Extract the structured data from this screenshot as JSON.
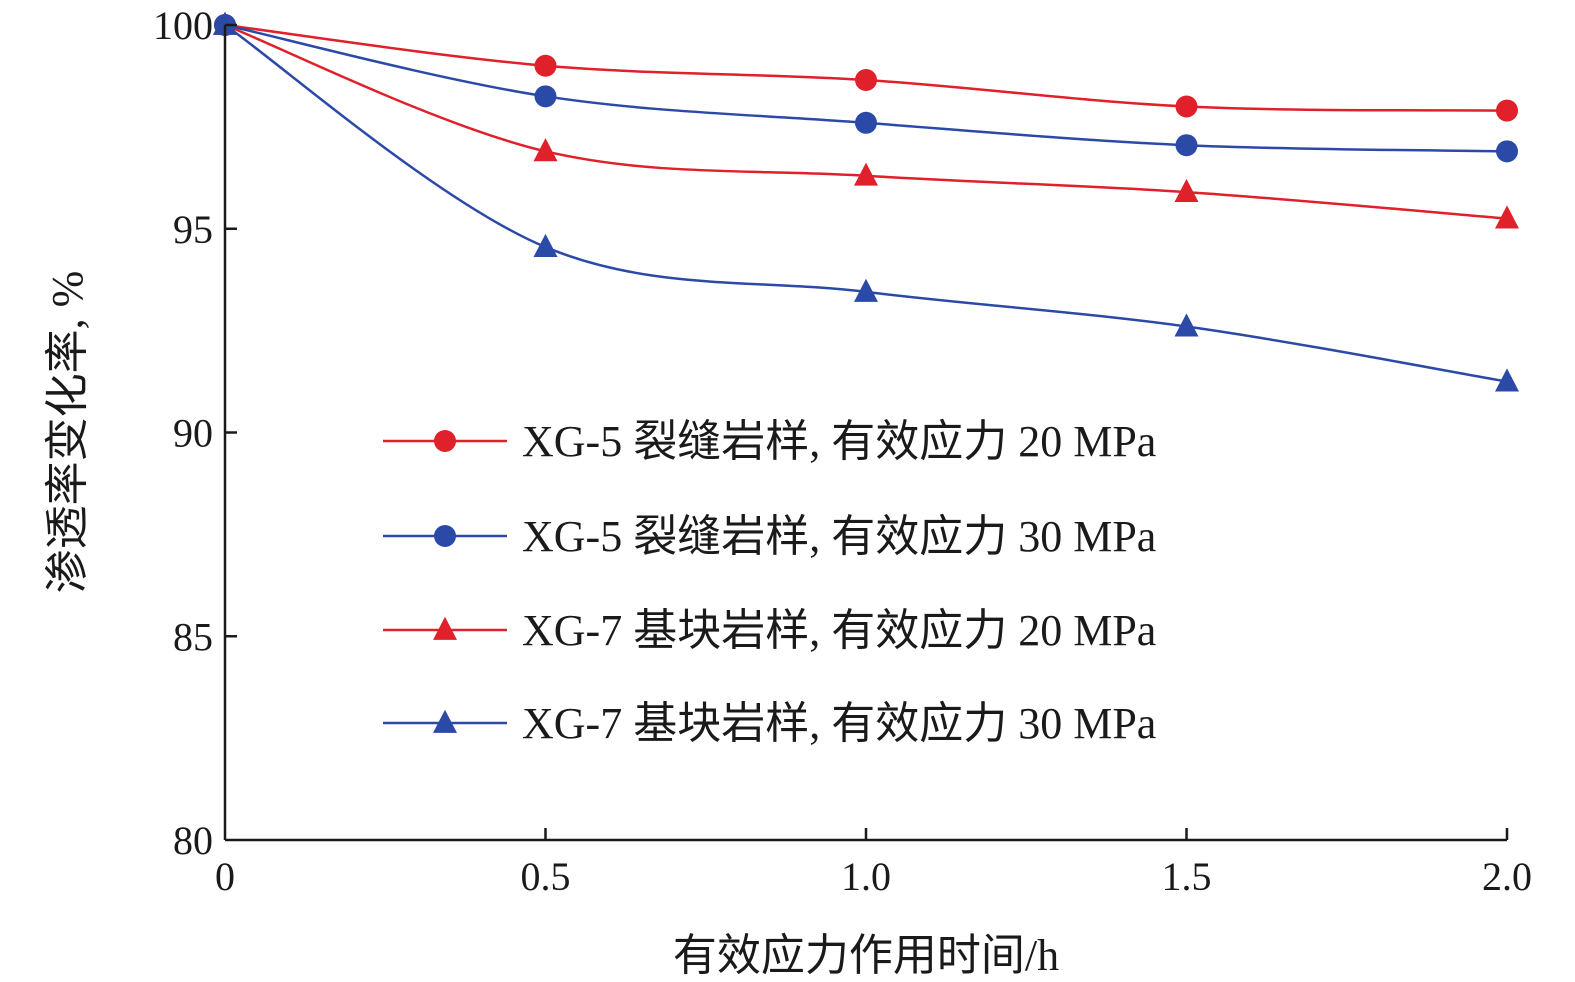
{
  "chart_data": {
    "type": "line",
    "title": "",
    "xlabel": "有效应力作用时间/h",
    "ylabel": "渗透率变化率, %",
    "x": [
      0,
      0.5,
      1.0,
      1.5,
      2.0
    ],
    "xtick_labels": [
      "0",
      "0.5",
      "1.0",
      "1.5",
      "2.0"
    ],
    "xlim": [
      0,
      2.0
    ],
    "ytick_values": [
      80,
      85,
      90,
      95,
      100
    ],
    "ytick_labels": [
      "80",
      "85",
      "90",
      "95",
      "100"
    ],
    "ylim": [
      80,
      100
    ],
    "grid": false,
    "legend_position": "center-right",
    "series": [
      {
        "name": "XG-5 裂缝岩样, 有效应力 20 MPa",
        "color": "#e0202a",
        "marker": "circle",
        "values": [
          100,
          99.0,
          98.65,
          98.0,
          97.9
        ]
      },
      {
        "name": "XG-5 裂缝岩样, 有效应力 30 MPa",
        "color": "#2b4aa8",
        "marker": "circle",
        "values": [
          100,
          98.25,
          97.6,
          97.05,
          96.9
        ]
      },
      {
        "name": "XG-7 基块岩样, 有效应力 20 MPa",
        "color": "#e0202a",
        "marker": "triangle",
        "values": [
          100,
          96.9,
          96.3,
          95.9,
          95.25
        ]
      },
      {
        "name": "XG-7 基块岩样, 有效应力 30 MPa",
        "color": "#2b4aa8",
        "marker": "triangle",
        "values": [
          100,
          94.55,
          93.45,
          92.6,
          91.25
        ]
      }
    ]
  }
}
